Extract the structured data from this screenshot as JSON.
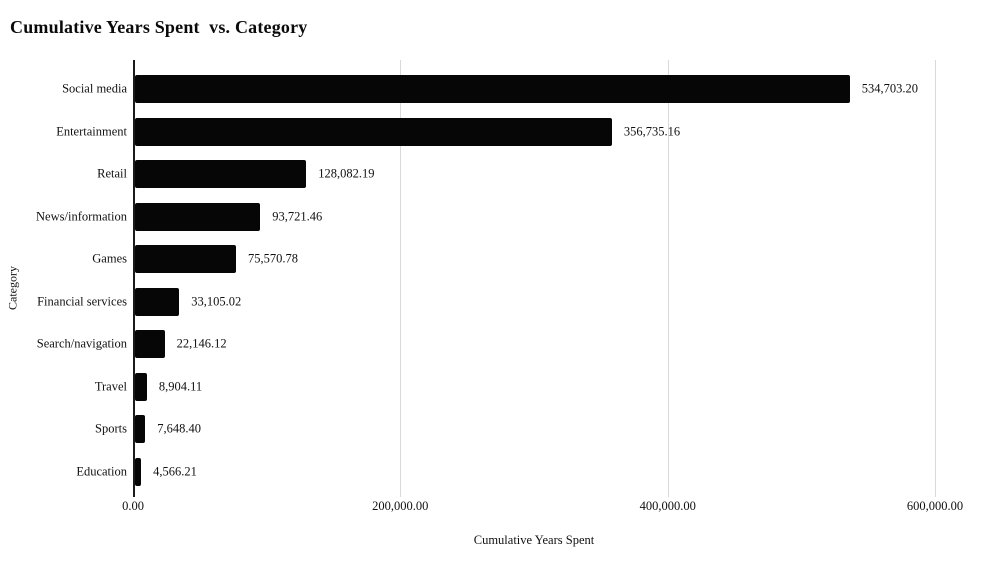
{
  "title": "Cumulative Years Spent  vs. Category",
  "colors": {
    "bar": "#060606",
    "gridline": "#d9d9d9",
    "axis": "#1a1a1a",
    "text": "#111111",
    "background": "#ffffff"
  },
  "chart_data": {
    "type": "bar",
    "orientation": "horizontal",
    "title": "Cumulative Years Spent  vs. Category",
    "xlabel": "Cumulative Years Spent",
    "ylabel": "Category",
    "grid": "vertical",
    "legend": false,
    "categories": [
      "Social media",
      "Entertainment",
      "Retail",
      "News/information",
      "Games",
      "Financial services",
      "Search/navigation",
      "Travel",
      "Sports",
      "Education"
    ],
    "values": [
      534703.2,
      356735.16,
      128082.19,
      93721.46,
      75570.78,
      33105.02,
      22146.12,
      8904.11,
      7648.4,
      4566.21
    ],
    "value_labels": [
      "534,703.20",
      "356,735.16",
      "128,082.19",
      "93,721.46",
      "75,570.78",
      "33,105.02",
      "22,146.12",
      "8,904.11",
      "7,648.40",
      "4,566.21"
    ],
    "x_ticks": [
      "0.00",
      "200,000.00",
      "400,000.00",
      "600,000.00"
    ],
    "x_tick_values": [
      0,
      200000,
      400000,
      600000
    ],
    "xlim": [
      0,
      600000
    ]
  }
}
